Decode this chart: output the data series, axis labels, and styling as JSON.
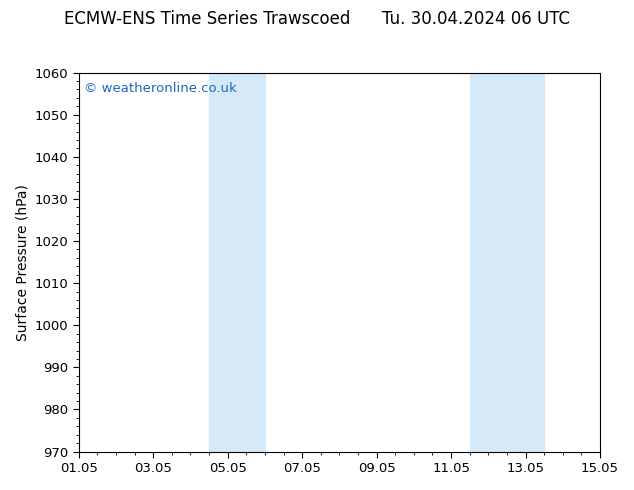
{
  "title_left": "ECMW-ENS Time Series Trawscoed",
  "title_right": "Tu. 30.04.2024 06 UTC",
  "ylabel": "Surface Pressure (hPa)",
  "ylim": [
    970,
    1060
  ],
  "yticks": [
    970,
    980,
    990,
    1000,
    1010,
    1020,
    1030,
    1040,
    1050,
    1060
  ],
  "xtick_labels": [
    "01.05",
    "03.05",
    "05.05",
    "07.05",
    "09.05",
    "11.05",
    "13.05",
    "15.05"
  ],
  "xtick_positions": [
    0,
    2,
    4,
    6,
    8,
    10,
    12,
    14
  ],
  "xlim": [
    0,
    14
  ],
  "shaded_bands": [
    {
      "x_start": 3.5,
      "x_end": 5.0
    },
    {
      "x_start": 10.5,
      "x_end": 12.5
    }
  ],
  "shade_color": "#d6e9f8",
  "background_color": "#ffffff",
  "watermark_text": "© weatheronline.co.uk",
  "watermark_color": "#1a6abf",
  "title_fontsize": 12,
  "axis_label_fontsize": 10,
  "tick_fontsize": 9.5,
  "watermark_fontsize": 9.5
}
